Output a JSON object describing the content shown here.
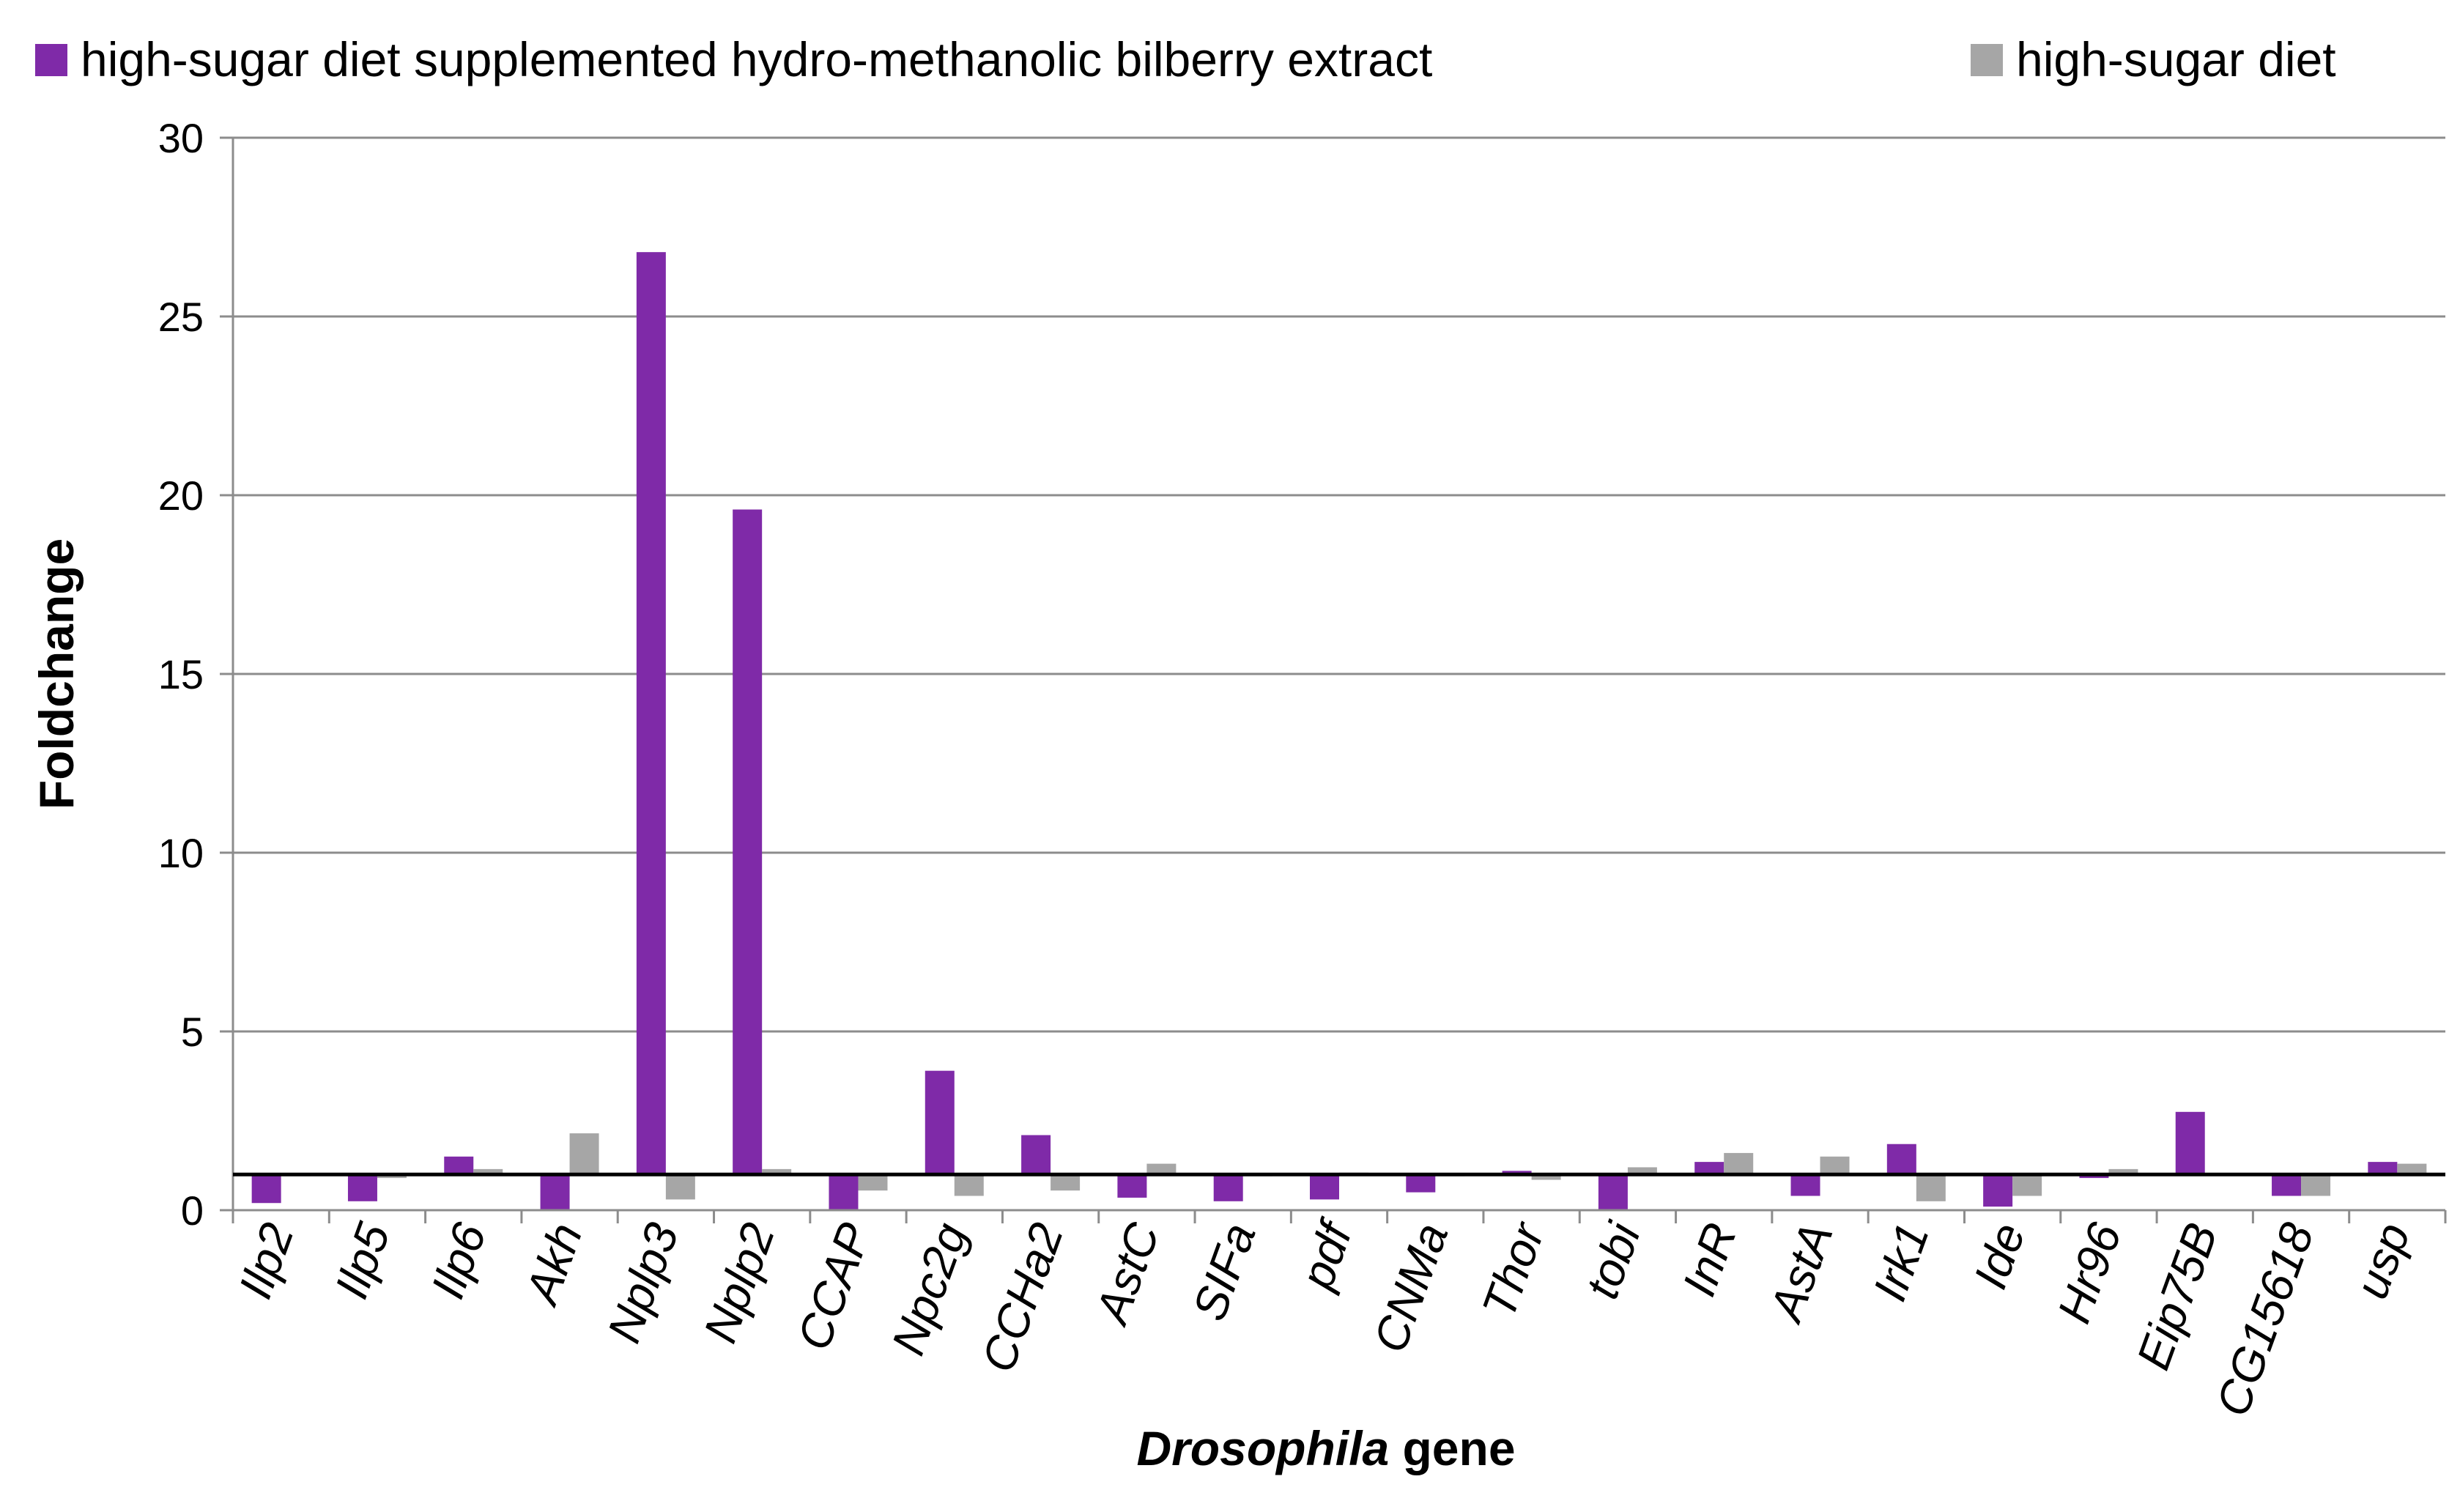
{
  "chart_data": {
    "type": "bar",
    "title": "",
    "xlabel": "Drosophila gene",
    "xlabel_parts": [
      {
        "text": "Drosophila",
        "italic": true
      },
      {
        "text": " gene",
        "italic": false
      }
    ],
    "ylabel": "Foldchange",
    "ylim": [
      0,
      30
    ],
    "yticks": [
      0,
      5,
      10,
      15,
      20,
      25,
      30
    ],
    "baseline": 1,
    "grid": true,
    "legend_position": "top",
    "categories": [
      "Ilp2",
      "Ilp5",
      "Ilp6",
      "Akh",
      "Nplp3",
      "Nplp2",
      "CCAP",
      "Npc2g",
      "CCHa2",
      "AstC",
      "SIFa",
      "pdf",
      "CNMa",
      "Thor",
      "tobi",
      "InR",
      "AstA",
      "Irk1",
      "Ide",
      "Hr96",
      "Eip75B",
      "CG15618",
      "usp"
    ],
    "series": [
      {
        "name": "high-sugar diet supplemented hydro-methanolic bilberry extract",
        "color": "#7f2aa8",
        "values": [
          0.2,
          0.25,
          1.5,
          0.0,
          26.8,
          19.6,
          0.0,
          3.9,
          2.1,
          0.35,
          0.25,
          0.3,
          0.5,
          1.1,
          0.0,
          1.35,
          0.4,
          1.85,
          0.1,
          0.9,
          2.75,
          0.4,
          1.35
        ]
      },
      {
        "name": "high-sugar diet",
        "color": "#a6a6a6",
        "values": [
          0.95,
          0.9,
          1.15,
          2.15,
          0.3,
          1.15,
          0.55,
          0.4,
          0.55,
          1.3,
          0.95,
          1.05,
          0.95,
          0.85,
          1.2,
          1.6,
          1.5,
          0.25,
          0.4,
          1.15,
          1.0,
          0.4,
          1.3
        ]
      }
    ]
  }
}
